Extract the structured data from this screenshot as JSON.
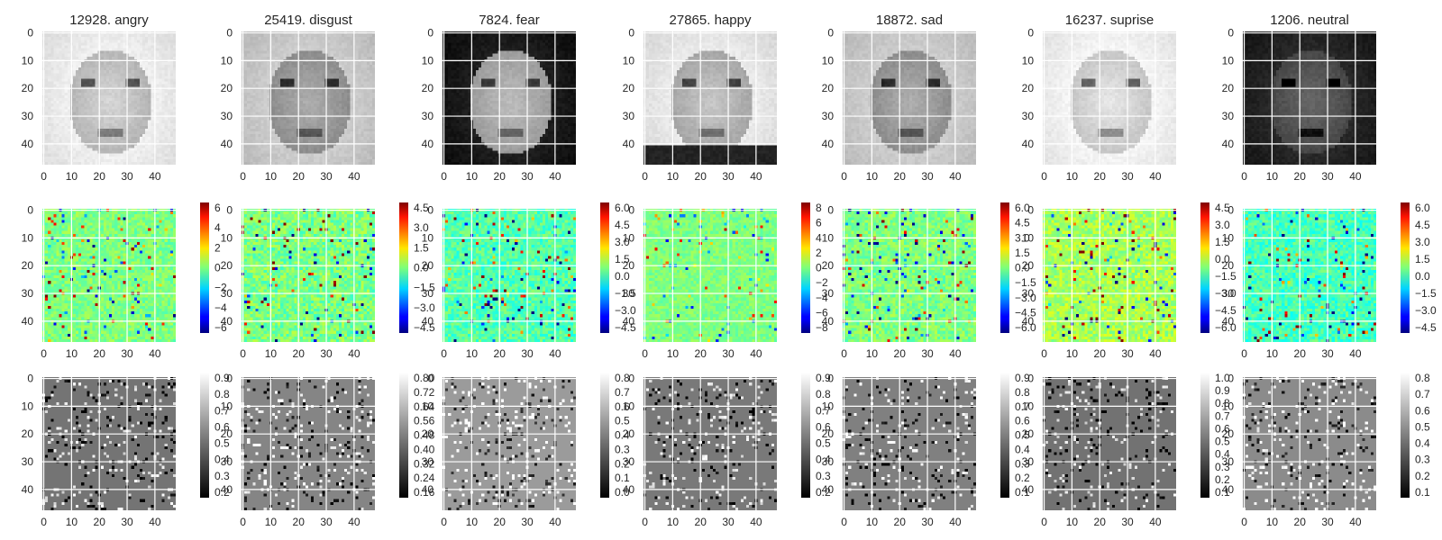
{
  "chart_data": {
    "type": "heatmap",
    "layout": "3 rows x 7 columns of image panels",
    "image_size": 48,
    "axis_ticks": [
      0,
      10,
      20,
      30,
      40
    ],
    "grid": true,
    "row_kinds": [
      "grayscale face image",
      "jet heatmap with colorbar",
      "grayscale heatmap with colorbar"
    ],
    "panels": [
      {
        "title": "12928. angry",
        "tone": "light",
        "heat": {
          "vmin": -7.0,
          "vmax": 7.0,
          "ticks": [
            "6",
            "4",
            "2",
            "0",
            "−2",
            "−4",
            "−6"
          ]
        },
        "gray": {
          "vmin": 0.15,
          "vmax": 0.92,
          "ticks": [
            "0.9",
            "0.8",
            "0.7",
            "0.6",
            "0.5",
            "0.4",
            "0.3",
            "0.2"
          ]
        }
      },
      {
        "title": "25419. disgust",
        "tone": "mid",
        "heat": {
          "vmin": -5.2,
          "vmax": 5.3,
          "ticks": [
            "4.5",
            "3.0",
            "1.5",
            "0.0",
            "−1.5",
            "−3.0",
            "−4.5"
          ]
        },
        "gray": {
          "vmin": 0.15,
          "vmax": 0.82,
          "ticks": [
            "0.80",
            "0.72",
            "0.64",
            "0.56",
            "0.48",
            "0.40",
            "0.32",
            "0.24",
            "0.16"
          ]
        }
      },
      {
        "title": "7824. fear",
        "tone": "darkhair",
        "heat": {
          "vmin": -5.3,
          "vmax": 6.3,
          "ticks": [
            "6.0",
            "4.5",
            "3.0",
            "1.5",
            "0.0",
            "−1.5",
            "−3.0",
            "−4.5"
          ]
        },
        "gray": {
          "vmin": 0.0,
          "vmax": 0.82,
          "ticks": [
            "0.8",
            "0.7",
            "0.6",
            "0.5",
            "0.4",
            "0.3",
            "0.2",
            "0.1",
            "0.0"
          ]
        }
      },
      {
        "title": "27865. happy",
        "tone": "suit",
        "heat": {
          "vmin": -9.0,
          "vmax": 9.0,
          "ticks": [
            "8",
            "6",
            "4",
            "2",
            "0",
            "−2",
            "−4",
            "−6",
            "−8"
          ]
        },
        "gray": {
          "vmin": 0.12,
          "vmax": 0.92,
          "ticks": [
            "0.9",
            "0.8",
            "0.7",
            "0.6",
            "0.5",
            "0.4",
            "0.3",
            "0.2"
          ]
        }
      },
      {
        "title": "18872. sad",
        "tone": "mid",
        "heat": {
          "vmin": -6.3,
          "vmax": 6.3,
          "ticks": [
            "6.0",
            "4.5",
            "3.0",
            "1.5",
            "0.0",
            "−1.5",
            "−3.0",
            "−4.5",
            "−6.0"
          ]
        },
        "gray": {
          "vmin": 0.05,
          "vmax": 0.95,
          "ticks": [
            "0.9",
            "0.8",
            "0.7",
            "0.6",
            "0.5",
            "0.4",
            "0.3",
            "0.2",
            "0.1"
          ]
        }
      },
      {
        "title": "16237. suprise",
        "tone": "verylight",
        "heat": {
          "vmin": -6.3,
          "vmax": 5.4,
          "ticks": [
            "4.5",
            "3.0",
            "1.5",
            "0.0",
            "−1.5",
            "−3.0",
            "−4.5",
            "−6.0"
          ]
        },
        "gray": {
          "vmin": 0.08,
          "vmax": 1.02,
          "ticks": [
            "1.0",
            "0.9",
            "0.8",
            "0.7",
            "0.6",
            "0.5",
            "0.4",
            "0.3",
            "0.2",
            "0.1"
          ]
        }
      },
      {
        "title": "1206. neutral",
        "tone": "dark",
        "heat": {
          "vmin": -5.0,
          "vmax": 6.3,
          "ticks": [
            "6.0",
            "4.5",
            "3.0",
            "1.5",
            "0.0",
            "−1.5",
            "−3.0",
            "−4.5"
          ]
        },
        "gray": {
          "vmin": 0.02,
          "vmax": 0.9,
          "ticks": [
            "0.8",
            "0.7",
            "0.6",
            "0.5",
            "0.4",
            "0.3",
            "0.2",
            "0.1"
          ]
        }
      }
    ]
  }
}
